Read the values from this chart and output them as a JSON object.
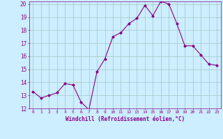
{
  "x": [
    0,
    1,
    2,
    3,
    4,
    5,
    6,
    7,
    8,
    9,
    10,
    11,
    12,
    13,
    14,
    15,
    16,
    17,
    18,
    19,
    20,
    21,
    22,
    23
  ],
  "y": [
    13.3,
    12.8,
    13.0,
    13.2,
    13.9,
    13.8,
    12.5,
    11.9,
    14.8,
    15.8,
    17.5,
    17.8,
    18.5,
    18.9,
    19.9,
    19.1,
    20.2,
    20.0,
    18.5,
    16.8,
    16.8,
    16.1,
    15.4,
    15.3
  ],
  "line_color": "#880088",
  "marker": "D",
  "marker_size": 2,
  "bg_color": "#cceeff",
  "grid_color": "#aacccc",
  "xlabel": "Windchill (Refroidissement éolien,°C)",
  "xlabel_color": "#880088",
  "tick_color": "#880088",
  "ylim": [
    12,
    20
  ],
  "xlim": [
    -0.5,
    23.5
  ],
  "yticks": [
    12,
    13,
    14,
    15,
    16,
    17,
    18,
    19,
    20
  ],
  "xticks": [
    0,
    1,
    2,
    3,
    4,
    5,
    6,
    7,
    8,
    9,
    10,
    11,
    12,
    13,
    14,
    15,
    16,
    17,
    18,
    19,
    20,
    21,
    22,
    23
  ]
}
